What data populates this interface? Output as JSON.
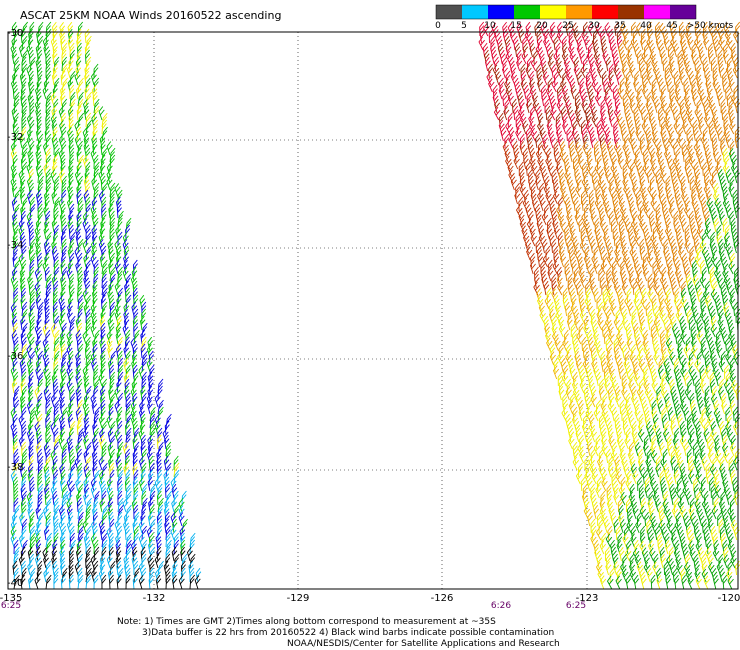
{
  "title": "ASCAT 25KM NOAA Winds 20160522 ascending",
  "color_scale": {
    "labels": [
      "0",
      "5",
      "10",
      "15",
      "20",
      "25",
      "30",
      "35",
      "40",
      "45",
      ">50 knots"
    ],
    "colors": [
      "#505050",
      "#00c8ff",
      "#0000ff",
      "#00c800",
      "#ffff00",
      "#ff9900",
      "#ff0000",
      "#993300",
      "#ff00ff",
      "#660099"
    ]
  },
  "lat_labels": [
    "-30",
    "-32",
    "-34",
    "-36",
    "-38",
    "-40"
  ],
  "lon_labels": [
    "-135",
    "-132",
    "-129",
    "-126",
    "-123",
    "-120"
  ],
  "time_labels": [
    "6:25",
    "6:26",
    "6:25"
  ],
  "notes": [
    "Note: 1) Times are GMT 2)Times along bottom correspond to measurement at ~35S",
    "3)Data buffer is 22 hrs from 20160522 4) Black wind barbs indicate possible contamination",
    "NOAA/NESDIS/Center for Satellite Applications and Research"
  ]
}
